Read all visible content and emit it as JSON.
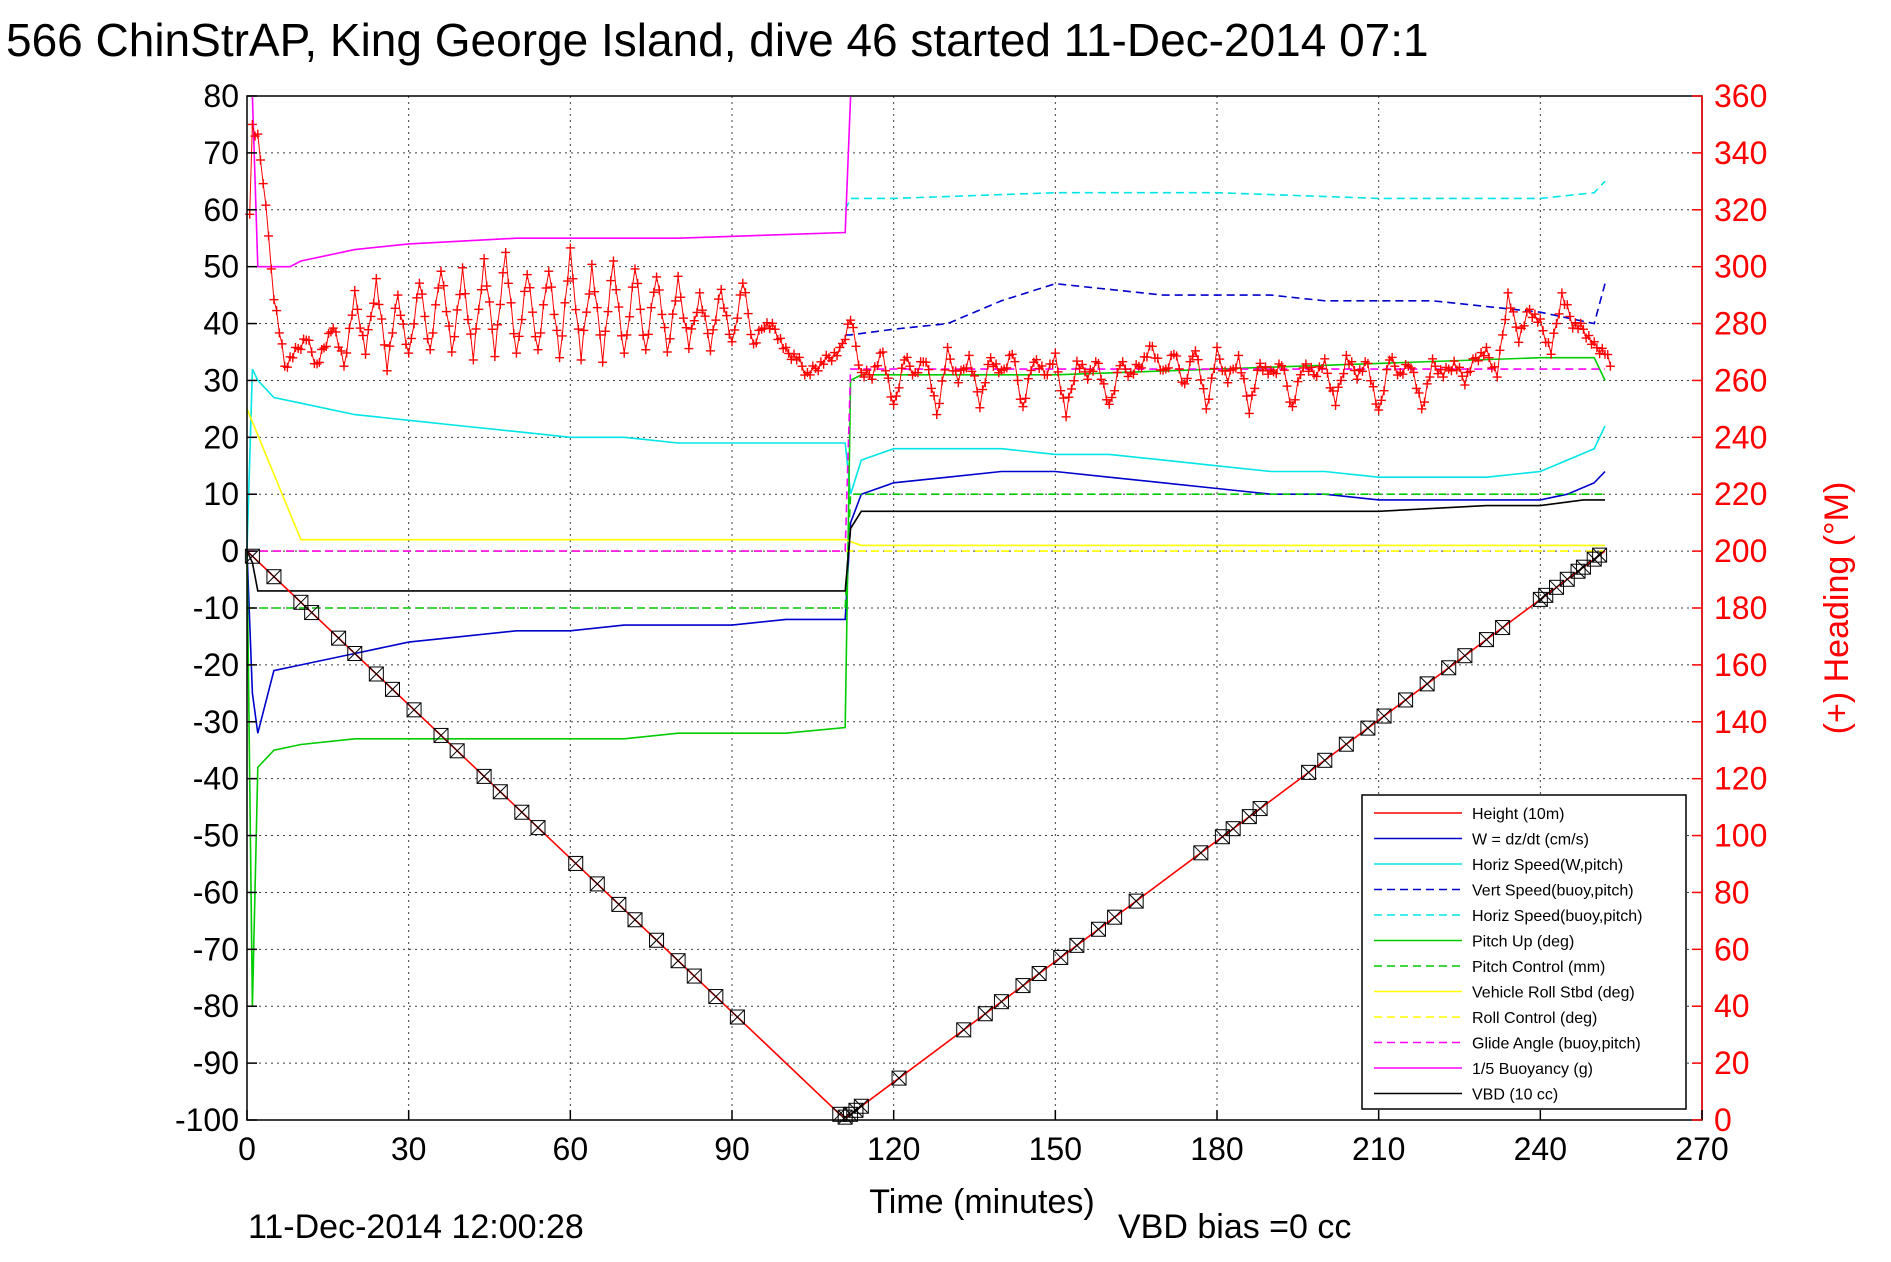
{
  "chart_data": {
    "type": "line",
    "title": "566 ChinStrAP, King George Island, dive 46 started 11-Dec-2014 07:1",
    "xlabel": "Time (minutes)",
    "ylabel_right": "(+) Heading (°M)",
    "xlim": [
      0,
      270
    ],
    "ylim": [
      -100,
      80
    ],
    "ylim_right": [
      0,
      360
    ],
    "x_ticks": [
      "0",
      "30",
      "60",
      "90",
      "120",
      "150",
      "180",
      "210",
      "240",
      "270"
    ],
    "y_ticks": [
      "80",
      "70",
      "60",
      "50",
      "40",
      "30",
      "20",
      "10",
      "0",
      "-10",
      "-20",
      "-30",
      "-40",
      "-50",
      "-60",
      "-70",
      "-80",
      "-90",
      "-100"
    ],
    "y_right_ticks": [
      "360",
      "340",
      "320",
      "300",
      "280",
      "260",
      "240",
      "220",
      "200",
      "180",
      "160",
      "140",
      "120",
      "100",
      "80",
      "60",
      "40",
      "20",
      "0"
    ],
    "grid": true,
    "legend_position": "bottom-right",
    "footer_left": "11-Dec-2014 12:00:28",
    "footer_right": "VBD bias =0 cc",
    "colors": {
      "red": "#ff0000",
      "blue": "#0000cc",
      "cyan": "#00e5e5",
      "green": "#00cc00",
      "yellow": "#ffff00",
      "magenta": "#ff00ff",
      "black": "#000000"
    },
    "series": [
      {
        "name": "Height (10m)",
        "color": "#ff0000",
        "dash": false,
        "x": [],
        "y": []
      },
      {
        "name": "W = dz/dt (cm/s)",
        "color": "#0000cc",
        "dash": false,
        "x": [
          0,
          1,
          2,
          5,
          10,
          20,
          30,
          40,
          50,
          60,
          70,
          80,
          90,
          100,
          111,
          112,
          114,
          120,
          130,
          140,
          150,
          160,
          170,
          180,
          190,
          200,
          210,
          220,
          230,
          240,
          245,
          250,
          252
        ],
        "y": [
          0,
          -25,
          -32,
          -21,
          -20,
          -18,
          -16,
          -15,
          -14,
          -14,
          -13,
          -13,
          -13,
          -12,
          -12,
          5,
          10,
          12,
          13,
          14,
          14,
          13,
          12,
          11,
          10,
          10,
          9,
          9,
          9,
          9,
          10,
          12,
          14
        ]
      },
      {
        "name": "Horiz Speed(W,pitch)",
        "color": "#00e5e5",
        "dash": false,
        "x": [
          0,
          1,
          2,
          5,
          10,
          20,
          30,
          40,
          50,
          60,
          70,
          80,
          90,
          100,
          111,
          112,
          114,
          120,
          130,
          140,
          150,
          160,
          170,
          180,
          190,
          200,
          210,
          220,
          230,
          240,
          245,
          250,
          252
        ],
        "y": [
          0,
          32,
          30,
          27,
          26,
          24,
          23,
          22,
          21,
          20,
          20,
          19,
          19,
          19,
          19,
          10,
          16,
          18,
          18,
          18,
          17,
          17,
          16,
          15,
          14,
          14,
          13,
          13,
          13,
          14,
          16,
          18,
          22
        ]
      },
      {
        "name": "Vert Speed(buoy,pitch)",
        "color": "#0000cc",
        "dash": true,
        "x": [
          111,
          112,
          120,
          130,
          140,
          150,
          160,
          170,
          180,
          190,
          200,
          210,
          220,
          230,
          240,
          250,
          252
        ],
        "y": [
          38,
          38,
          39,
          40,
          44,
          47,
          46,
          45,
          45,
          45,
          44,
          44,
          44,
          43,
          42,
          40,
          47
        ]
      },
      {
        "name": "Horiz Speed(buoy,pitch)",
        "color": "#00e5e5",
        "dash": true,
        "x": [
          111,
          112,
          120,
          150,
          180,
          210,
          240,
          250,
          252
        ],
        "y": [
          60,
          62,
          62,
          63,
          63,
          62,
          62,
          63,
          65
        ]
      },
      {
        "name": "Pitch Up (deg)",
        "color": "#00cc00",
        "dash": false,
        "x": [
          0,
          1,
          2,
          5,
          10,
          20,
          30,
          40,
          50,
          60,
          70,
          80,
          90,
          100,
          111,
          112,
          114,
          120,
          150,
          180,
          210,
          240,
          250,
          252
        ],
        "y": [
          0,
          -80,
          -38,
          -35,
          -34,
          -33,
          -33,
          -33,
          -33,
          -33,
          -33,
          -32,
          -32,
          -32,
          -31,
          30,
          31,
          31,
          31,
          32,
          33,
          34,
          34,
          30
        ]
      },
      {
        "name": "Pitch Control (mm)",
        "color": "#00cc00",
        "dash": true,
        "x": [
          0,
          111,
          112,
          252
        ],
        "y": [
          -10,
          -10,
          10,
          10
        ]
      },
      {
        "name": "Vehicle Roll Stbd (deg)",
        "color": "#ffff00",
        "dash": false,
        "x": [
          0,
          10,
          20,
          30,
          40,
          50,
          60,
          70,
          80,
          90,
          100,
          111,
          114,
          120,
          150,
          180,
          210,
          240,
          252
        ],
        "y": [
          25,
          2,
          2,
          2,
          2,
          2,
          2,
          2,
          2,
          2,
          2,
          2,
          1,
          1,
          1,
          1,
          1,
          1,
          1
        ]
      },
      {
        "name": "Roll Control (deg)",
        "color": "#ffff00",
        "dash": true,
        "x": [
          0,
          111,
          112,
          252
        ],
        "y": [
          0,
          0,
          0,
          0
        ]
      },
      {
        "name": "Glide Angle (buoy,pitch)",
        "color": "#ff00ff",
        "dash": true,
        "x": [
          0,
          111,
          112,
          252
        ],
        "y": [
          0,
          0,
          32,
          32
        ]
      },
      {
        "name": "1/5 Buoyancy (g)",
        "color": "#ff00ff",
        "dash": false,
        "x": [
          1,
          2,
          5,
          8,
          10,
          20,
          30,
          50,
          80,
          111,
          112
        ],
        "y": [
          80,
          50,
          50,
          50,
          51,
          53,
          54,
          55,
          55,
          56,
          80
        ]
      },
      {
        "name": "VBD (10 cc)",
        "color": "#000000",
        "dash": false,
        "x": [
          0,
          1,
          2,
          111,
          112,
          114,
          120,
          150,
          180,
          210,
          230,
          240,
          248,
          252
        ],
        "y": [
          0,
          -2,
          -7,
          -7,
          4,
          7,
          7,
          7,
          7,
          7,
          8,
          8,
          9,
          9
        ]
      }
    ],
    "depth": {
      "name": "Height (10m)",
      "color": "#ff0000",
      "x": [
        0,
        110,
        111,
        112,
        252
      ],
      "y": [
        0,
        -99,
        -99.5,
        -99,
        0
      ],
      "markers_x": [
        1,
        5,
        10,
        12,
        17,
        20,
        24,
        27,
        31,
        36,
        39,
        44,
        47,
        51,
        54,
        61,
        65,
        69,
        72,
        76,
        80,
        83,
        87,
        91,
        110,
        111,
        112,
        113,
        114,
        121,
        133,
        137,
        140,
        144,
        147,
        151,
        154,
        158,
        161,
        165,
        177,
        181,
        183,
        186,
        188,
        197,
        200,
        204,
        208,
        211,
        215,
        219,
        223,
        226,
        230,
        233,
        240,
        241,
        243,
        245,
        247,
        248,
        250,
        251
      ]
    },
    "heading": {
      "name": "(+) Heading (°M)",
      "color": "#ff0000",
      "x": [
        0.5,
        1,
        2,
        3,
        4,
        5,
        7,
        9,
        11,
        13,
        16,
        18,
        20,
        22,
        24,
        26,
        28,
        30,
        32,
        34,
        36,
        38,
        40,
        42,
        44,
        46,
        48,
        50,
        52,
        54,
        56,
        58,
        60,
        62,
        64,
        66,
        68,
        70,
        72,
        74,
        76,
        78,
        80,
        82,
        84,
        86,
        88,
        90,
        92,
        94,
        96,
        98,
        100,
        102,
        104,
        106,
        108,
        110,
        112,
        114,
        116,
        118,
        120,
        122,
        124,
        126,
        128,
        130,
        132,
        134,
        136,
        138,
        140,
        142,
        144,
        146,
        148,
        150,
        152,
        154,
        156,
        158,
        160,
        162,
        164,
        166,
        168,
        170,
        172,
        174,
        176,
        178,
        180,
        182,
        184,
        186,
        188,
        190,
        192,
        194,
        196,
        198,
        200,
        202,
        204,
        206,
        208,
        210,
        212,
        214,
        216,
        218,
        220,
        222,
        224,
        226,
        228,
        230,
        232,
        234,
        236,
        238,
        240,
        242,
        244,
        246,
        248,
        250,
        252,
        253
      ],
      "y": [
        320,
        350,
        345,
        330,
        310,
        290,
        265,
        270,
        275,
        265,
        280,
        265,
        290,
        270,
        295,
        265,
        290,
        268,
        295,
        270,
        300,
        270,
        298,
        268,
        302,
        270,
        305,
        268,
        298,
        270,
        300,
        268,
        305,
        268,
        300,
        268,
        302,
        268,
        300,
        270,
        298,
        270,
        295,
        272,
        290,
        272,
        292,
        272,
        295,
        272,
        280,
        278,
        270,
        268,
        262,
        265,
        268,
        270,
        282,
        262,
        262,
        270,
        250,
        268,
        262,
        268,
        248,
        270,
        260,
        268,
        252,
        268,
        262,
        270,
        250,
        268,
        262,
        268,
        248,
        266,
        262,
        266,
        250,
        266,
        262,
        266,
        272,
        262,
        270,
        258,
        272,
        250,
        270,
        260,
        268,
        250,
        266,
        262,
        266,
        250,
        266,
        262,
        266,
        252,
        268,
        262,
        266,
        248,
        268,
        262,
        266,
        250,
        266,
        262,
        266,
        260,
        268,
        270,
        262,
        290,
        275,
        285,
        280,
        270,
        290,
        280,
        278,
        272,
        270,
        265
      ]
    }
  },
  "legend": {
    "items": [
      {
        "label": "Height (10m)",
        "color": "#ff0000",
        "dash": false
      },
      {
        "label": "W = dz/dt (cm/s)",
        "color": "#0000cc",
        "dash": false
      },
      {
        "label": "Horiz Speed(W,pitch)",
        "color": "#00e5e5",
        "dash": false
      },
      {
        "label": "Vert Speed(buoy,pitch)",
        "color": "#0000cc",
        "dash": true
      },
      {
        "label": "Horiz Speed(buoy,pitch)",
        "color": "#00e5e5",
        "dash": true
      },
      {
        "label": "Pitch Up (deg)",
        "color": "#00cc00",
        "dash": false
      },
      {
        "label": "Pitch Control (mm)",
        "color": "#00cc00",
        "dash": true
      },
      {
        "label": "Vehicle Roll Stbd (deg)",
        "color": "#ffff00",
        "dash": false
      },
      {
        "label": "Roll Control (deg)",
        "color": "#ffff00",
        "dash": true
      },
      {
        "label": "Glide Angle (buoy,pitch)",
        "color": "#ff00ff",
        "dash": true
      },
      {
        "label": "1/5 Buoyancy (g)",
        "color": "#ff00ff",
        "dash": false
      },
      {
        "label": "VBD (10 cc)",
        "color": "#000000",
        "dash": false
      }
    ]
  }
}
